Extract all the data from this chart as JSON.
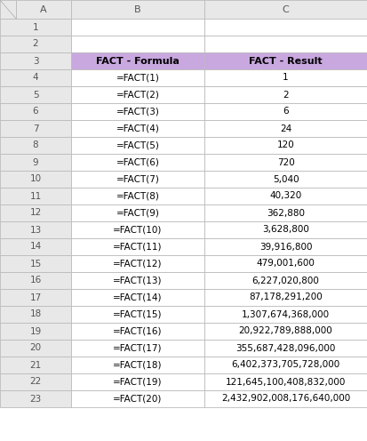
{
  "col_headers": [
    "FACT - Formula",
    "FACT - Result"
  ],
  "formulas": [
    "=FACT(1)",
    "=FACT(2)",
    "=FACT(3)",
    "=FACT(4)",
    "=FACT(5)",
    "=FACT(6)",
    "=FACT(7)",
    "=FACT(8)",
    "=FACT(9)",
    "=FACT(10)",
    "=FACT(11)",
    "=FACT(12)",
    "=FACT(13)",
    "=FACT(14)",
    "=FACT(15)",
    "=FACT(16)",
    "=FACT(17)",
    "=FACT(18)",
    "=FACT(19)",
    "=FACT(20)"
  ],
  "results": [
    "1",
    "2",
    "6",
    "24",
    "120",
    "720",
    "5,040",
    "40,320",
    "362,880",
    "3,628,800",
    "39,916,800",
    "479,001,600",
    "6,227,020,800",
    "87,178,291,200",
    "1,307,674,368,000",
    "20,922,789,888,000",
    "355,687,428,096,000",
    "6,402,373,705,728,000",
    "121,645,100,408,832,000",
    "2,432,902,008,176,640,000"
  ],
  "row_labels": [
    "1",
    "2",
    "3",
    "4",
    "5",
    "6",
    "7",
    "8",
    "9",
    "10",
    "11",
    "12",
    "13",
    "14",
    "15",
    "16",
    "17",
    "18",
    "19",
    "20",
    "21",
    "22",
    "23"
  ],
  "col_labels": [
    "A",
    "B",
    "C"
  ],
  "header_bg": "#C9A8E0",
  "header_text": "#000000",
  "cell_bg": "#FFFFFF",
  "cell_text": "#000000",
  "grid_color": "#BBBBBB",
  "row_header_bg": "#E8E8E8",
  "outer_bg": "#FFFFFF",
  "corner_bg": "#D0D0D0",
  "col_header_text": "#555555"
}
